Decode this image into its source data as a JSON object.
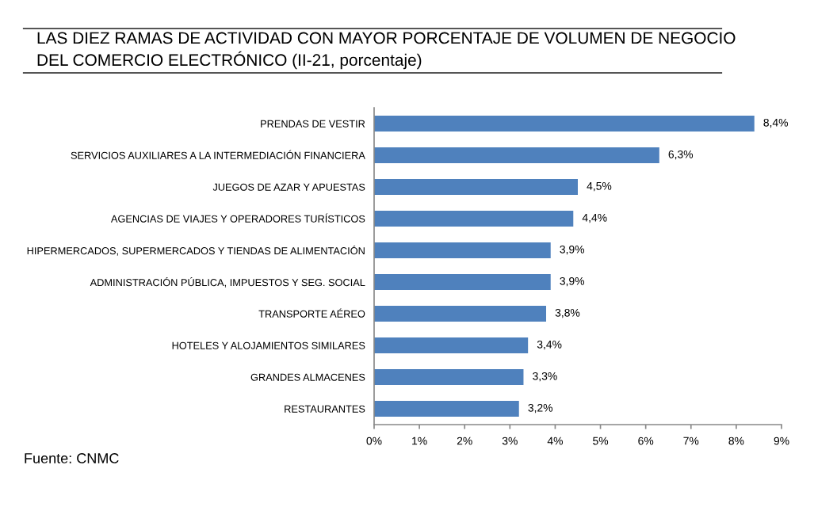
{
  "chart_data": {
    "type": "bar",
    "orientation": "horizontal",
    "title": "LAS DIEZ RAMAS DE ACTIVIDAD CON MAYOR PORCENTAJE DE VOLUMEN DE NEGOCIO\nDEL COMERCIO ELECTRÓNICO (II-21, porcentaje)",
    "categories": [
      "PRENDAS DE VESTIR",
      "SERVICIOS AUXILIARES A LA INTERMEDIACIÓN FINANCIERA",
      "JUEGOS DE AZAR Y APUESTAS",
      "AGENCIAS DE VIAJES Y OPERADORES TURÍSTICOS",
      "HIPERMERCADOS, SUPERMERCADOS Y TIENDAS DE ALIMENTACIÓN",
      "ADMINISTRACIÓN PÚBLICA, IMPUESTOS Y SEG. SOCIAL",
      "TRANSPORTE AÉREO",
      "HOTELES Y ALOJAMIENTOS SIMILARES",
      "GRANDES ALMACENES",
      "RESTAURANTES"
    ],
    "values": [
      8.4,
      6.3,
      4.5,
      4.4,
      3.9,
      3.9,
      3.8,
      3.4,
      3.3,
      3.2
    ],
    "value_labels": [
      "8,4%",
      "6,3%",
      "4,5%",
      "4,4%",
      "3,9%",
      "3,9%",
      "3,8%",
      "3,4%",
      "3,3%",
      "3,2%"
    ],
    "color": "#4f81bd",
    "xlim": [
      0,
      9
    ],
    "xticks": [
      {
        "value": 0,
        "label": "0%"
      },
      {
        "value": 1,
        "label": "1%"
      },
      {
        "value": 2,
        "label": "2%"
      },
      {
        "value": 3,
        "label": "3%"
      },
      {
        "value": 4,
        "label": "4%"
      },
      {
        "value": 5,
        "label": "5%"
      },
      {
        "value": 6,
        "label": "6%"
      },
      {
        "value": 7,
        "label": "7%"
      },
      {
        "value": 8,
        "label": "8%"
      },
      {
        "value": 9,
        "label": "9%"
      }
    ],
    "grid": false,
    "annotations": [
      "Fuente: CNMC"
    ]
  }
}
